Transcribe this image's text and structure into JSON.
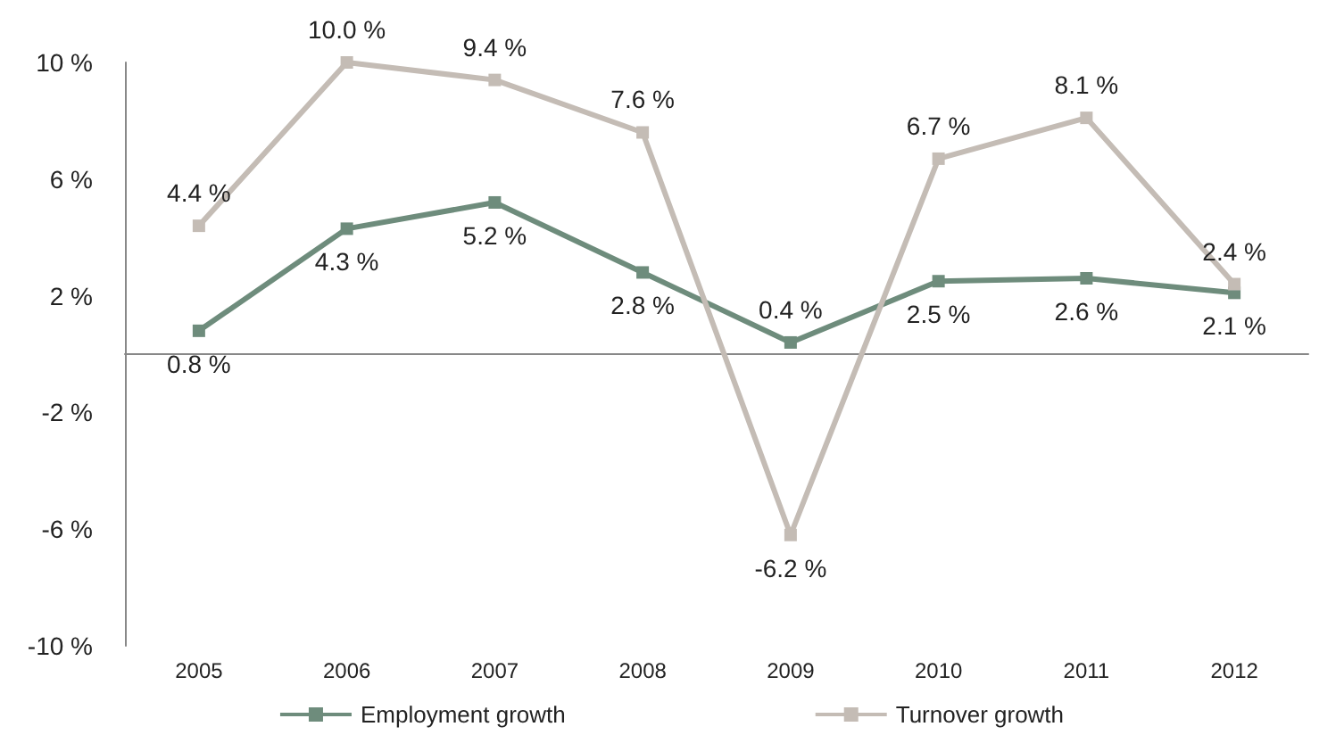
{
  "chart_data": {
    "type": "line",
    "categories": [
      "2005",
      "2006",
      "2007",
      "2008",
      "2009",
      "2010",
      "2011",
      "2012"
    ],
    "series": [
      {
        "name": "Employment growth",
        "color": "#6e8c7c",
        "values": [
          0.8,
          4.3,
          5.2,
          2.8,
          0.4,
          2.5,
          2.6,
          2.1
        ],
        "value_labels": [
          "0.8 %",
          "4.3 %",
          "5.2 %",
          "2.8 %",
          "0.4 %",
          "2.5 %",
          "2.6 %",
          "2.1 %"
        ]
      },
      {
        "name": "Turnover growth",
        "color": "#c4bcb5",
        "values": [
          4.4,
          10.0,
          9.4,
          7.6,
          -6.2,
          6.7,
          8.1,
          2.4
        ],
        "value_labels": [
          "4.4 %",
          "10.0 %",
          "9.4 %",
          "7.6 %",
          "-6.2 %",
          "6.7 %",
          "8.1 %",
          "2.4 %"
        ]
      }
    ],
    "ylim": [
      -10,
      10
    ],
    "yticks": [
      {
        "value": -10,
        "label": "-10 %"
      },
      {
        "value": -6,
        "label": "-6 %"
      },
      {
        "value": -2,
        "label": "-2 %"
      },
      {
        "value": 2,
        "label": "2 %"
      },
      {
        "value": 6,
        "label": "6 %"
      },
      {
        "value": 10,
        "label": "10 %"
      }
    ],
    "grid": false,
    "legend": "bottom",
    "marker": "square",
    "line_style": "solid"
  }
}
